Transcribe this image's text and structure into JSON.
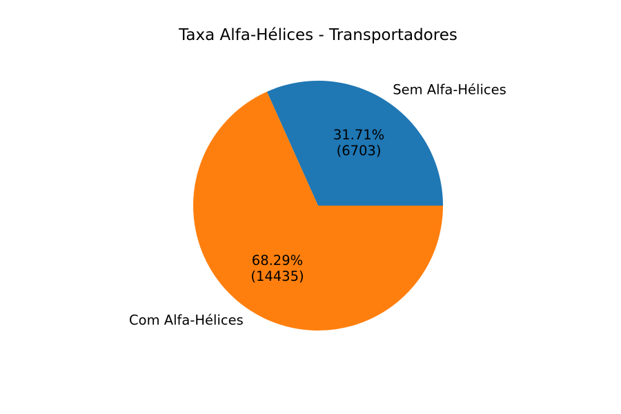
{
  "chart_data": {
    "type": "pie",
    "title": "Taxa Alfa-Hélices - Transportadores",
    "slices": [
      {
        "label": "Sem Alfa-Hélices",
        "value": 6703,
        "percent_label": "31.71%",
        "count_label": "(6703)",
        "color": "#1f77b4"
      },
      {
        "label": "Com Alfa-Hélices",
        "value": 14435,
        "percent_label": "68.29%",
        "count_label": "(14435)",
        "color": "#ff7f0e"
      }
    ],
    "start_angle_deg": 0,
    "direction": "counterclockwise",
    "legend": "none"
  }
}
